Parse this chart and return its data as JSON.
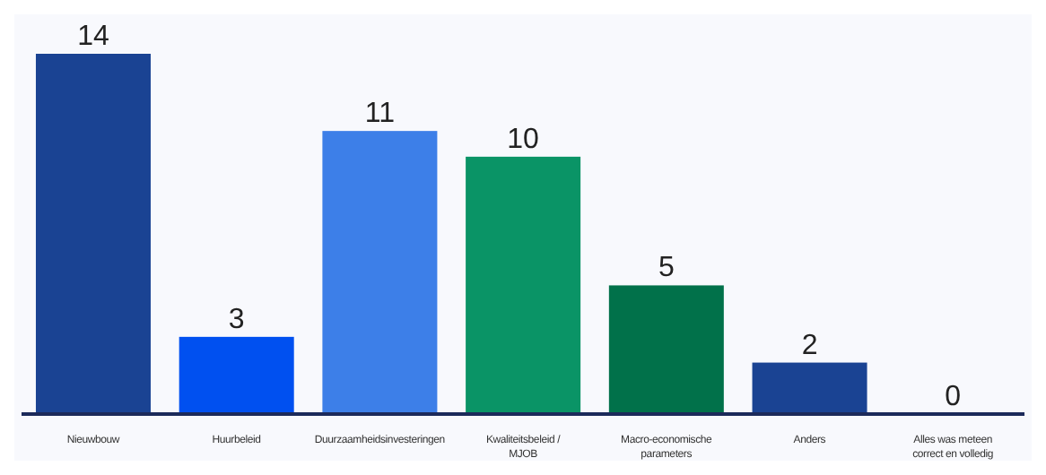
{
  "chart_data": {
    "type": "bar",
    "categories": [
      "Nieuwbouw",
      "Huurbeleid",
      "Duurzaamheidsinvesteringen",
      "Kwaliteitsbeleid / MJOB",
      "Macro-economische parameters",
      "Anders",
      "Alles was meteen correct en volledig"
    ],
    "values": [
      14,
      3,
      11,
      10,
      5,
      2,
      0
    ],
    "colors": [
      "#1a4393",
      "#0050f0",
      "#3d7fe8",
      "#0a9466",
      "#01714a",
      "#1a4393",
      "#1a4393"
    ],
    "data_labels": true
  }
}
